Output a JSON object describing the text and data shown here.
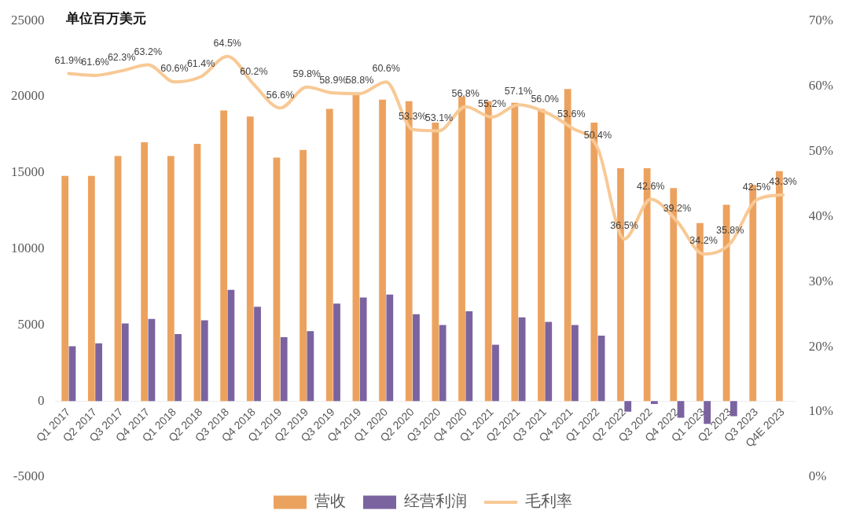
{
  "chart_data": {
    "type": "bar",
    "ylabel": "单位百万美元",
    "categories": [
      "Q1 2017",
      "Q2 2017",
      "Q3 2017",
      "Q4 2017",
      "Q1 2018",
      "Q2 2018",
      "Q3 2018",
      "Q4 2018",
      "Q1 2019",
      "Q2 2019",
      "Q3 2019",
      "Q4 2019",
      "Q1 2020",
      "Q2 2020",
      "Q3 2020",
      "Q4 2020",
      "Q1 2021",
      "Q2 2021",
      "Q3 2021",
      "Q4 2021",
      "Q1 2022",
      "Q2 2022",
      "Q3 2022",
      "Q4 2022",
      "Q1 2023",
      "Q2 2023",
      "Q3 2023",
      "Q4E 2023"
    ],
    "series": [
      {
        "name": "营收",
        "color": "#eca25f",
        "values": [
          14800,
          14800,
          16100,
          17000,
          16100,
          16900,
          19100,
          18700,
          16000,
          16500,
          19200,
          20200,
          19800,
          19700,
          18300,
          20000,
          19700,
          19600,
          19200,
          20500,
          18300,
          15300,
          15300,
          14000,
          11700,
          12900,
          14200,
          15100
        ]
      },
      {
        "name": "经营利润",
        "color": "#7b63a0",
        "values": [
          3600,
          3800,
          5100,
          5400,
          4400,
          5300,
          7300,
          6200,
          4200,
          4600,
          6400,
          6800,
          7000,
          5700,
          5000,
          5900,
          3700,
          5500,
          5200,
          5000,
          4300,
          -700,
          -200,
          -1100,
          -1500,
          -1000,
          null,
          null
        ]
      },
      {
        "name": "毛利率",
        "type": "line",
        "color": "#f8c995",
        "axis": "y2",
        "values": [
          61.9,
          61.6,
          62.3,
          63.2,
          60.6,
          61.4,
          64.5,
          60.2,
          56.6,
          59.8,
          58.9,
          58.8,
          60.6,
          53.3,
          53.1,
          56.8,
          55.2,
          57.1,
          56.0,
          53.6,
          50.4,
          36.5,
          42.6,
          39.2,
          34.2,
          35.8,
          42.5,
          43.3
        ],
        "value_labels": [
          "61.9%",
          "61.6%",
          "62.3%",
          "63.2%",
          "60.6%",
          "61.4%",
          "64.5%",
          "60.2%",
          "56.6%",
          "59.8%",
          "58.9%",
          "58.8%",
          "60.6%",
          "53.3%",
          "53.1%",
          "56.8%",
          "55.2%",
          "57.1%",
          "56.0%",
          "53.6%",
          "50.4%",
          "36.5%",
          "42.6%",
          "39.2%",
          "34.2%",
          "35.8%",
          "42.5%",
          "43.3%"
        ]
      }
    ],
    "ylim": [
      -5000,
      25000
    ],
    "yticks": [
      -5000,
      0,
      5000,
      10000,
      15000,
      20000,
      25000
    ],
    "y2lim": [
      0,
      70
    ],
    "y2ticks": [
      {
        "value": 0,
        "label": "0%"
      },
      {
        "value": 10,
        "label": "10%"
      },
      {
        "value": 20,
        "label": "20%"
      },
      {
        "value": 30,
        "label": "30%"
      },
      {
        "value": 40,
        "label": "40%"
      },
      {
        "value": 50,
        "label": "50%"
      },
      {
        "value": 60,
        "label": "60%"
      },
      {
        "value": 70,
        "label": "70%"
      }
    ],
    "grid": false,
    "legend": "bottom"
  }
}
